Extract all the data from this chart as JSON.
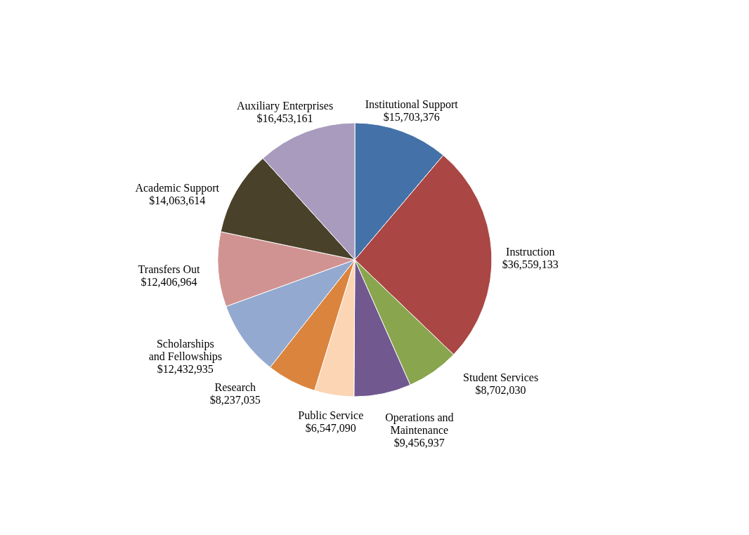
{
  "chart_data": {
    "type": "pie",
    "categories": [
      "Institutional Support",
      "Instruction",
      "Student Services",
      "Operations and Maintenance",
      "Public Service",
      "Research",
      "Scholarships and Fellowships",
      "Transfers Out",
      "Academic Support",
      "Auxiliary Enterprises"
    ],
    "values": [
      15703376,
      36559133,
      8702030,
      9456937,
      6547090,
      8237035,
      12432935,
      12406964,
      14063614,
      16453161
    ],
    "value_labels": [
      "$15,703,376",
      "$36,559,133",
      "$8,702,030",
      "$9,456,937",
      "$6,547,090",
      "$8,237,035",
      "$12,432,935",
      "$12,406,964",
      "$14,063,614",
      "$16,453,161"
    ],
    "colors": [
      "#4472a8",
      "#aa4644",
      "#89a54e",
      "#71588f",
      "#fcd5b4",
      "#db843d",
      "#93a9cf",
      "#d09392",
      "#4a412a",
      "#a99bbd"
    ],
    "legend": false
  }
}
